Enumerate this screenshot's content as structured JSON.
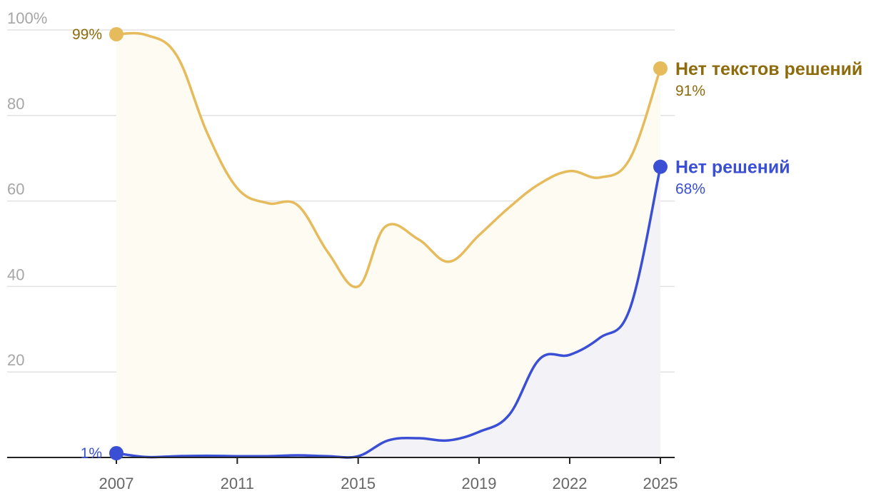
{
  "chart_data": {
    "type": "area",
    "x_ticks": [
      "2007",
      "2011",
      "2015",
      "2019",
      "2022",
      "2025"
    ],
    "y_ticks": [
      "100%",
      "80",
      "60",
      "40",
      "20"
    ],
    "ylim": [
      0,
      100
    ],
    "grid": true,
    "series": [
      {
        "name": "Нет текстов решений",
        "color": "#e6bb5c",
        "label_color": "#8d6a0b",
        "fill": "#fdfbf2",
        "start_label": "99%",
        "end_label": "91%",
        "points": [
          [
            2007,
            99
          ],
          [
            2008,
            98.8
          ],
          [
            2009,
            94
          ],
          [
            2010,
            76
          ],
          [
            2011,
            63
          ],
          [
            2012,
            59.5
          ],
          [
            2013,
            59
          ],
          [
            2014,
            48
          ],
          [
            2015,
            40
          ],
          [
            2015.9,
            54
          ],
          [
            2017,
            51
          ],
          [
            2018,
            45.8
          ],
          [
            2019,
            52
          ],
          [
            2020,
            58.5
          ],
          [
            2021,
            64
          ],
          [
            2022,
            67
          ],
          [
            2023,
            65.5
          ],
          [
            2024,
            70
          ],
          [
            2025,
            91
          ]
        ]
      },
      {
        "name": "Нет решений",
        "color": "#3a4fd4",
        "label_color": "#3a4fd4",
        "fill": "#f3f3f7",
        "start_label": "1%",
        "end_label": "68%",
        "points": [
          [
            2007,
            1
          ],
          [
            2008,
            0.1
          ],
          [
            2009,
            0.3
          ],
          [
            2010,
            0.4
          ],
          [
            2011,
            0.3
          ],
          [
            2012,
            0.3
          ],
          [
            2013,
            0.5
          ],
          [
            2014,
            0.3
          ],
          [
            2015,
            0.3
          ],
          [
            2016,
            4
          ],
          [
            2017,
            4.5
          ],
          [
            2018,
            4
          ],
          [
            2019,
            6
          ],
          [
            2020,
            10
          ],
          [
            2021,
            23
          ],
          [
            2022,
            24
          ],
          [
            2023,
            28
          ],
          [
            2024,
            35
          ],
          [
            2025,
            68
          ]
        ]
      }
    ]
  }
}
